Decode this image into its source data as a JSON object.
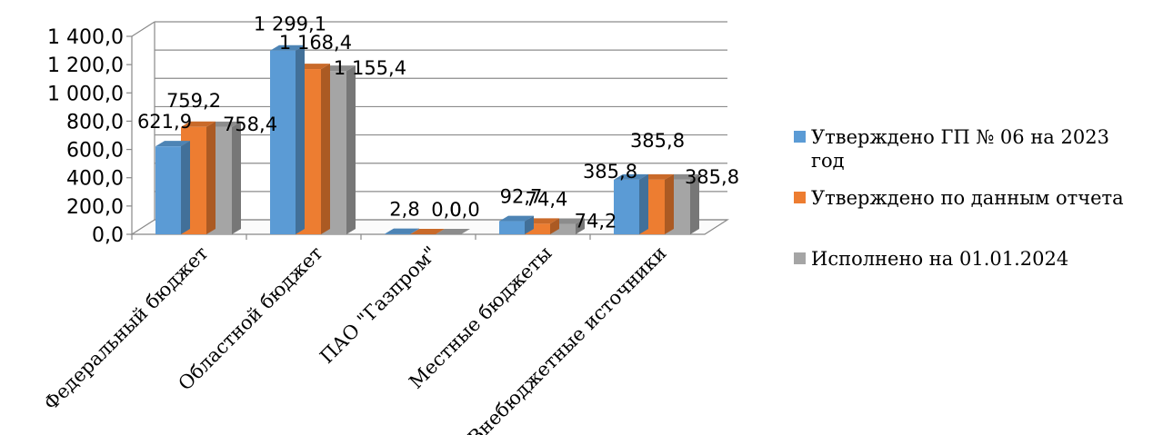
{
  "chart_data": {
    "type": "bar",
    "title": "",
    "xlabel": "",
    "ylabel": "",
    "ylim": [
      0,
      1400
    ],
    "yticks": [
      "0,0",
      "200,0",
      "400,0",
      "600,0",
      "800,0",
      "1 000,0",
      "1 200,0",
      "1 400,0"
    ],
    "categories": [
      "Федеральный бюджет",
      "Областной бюджет",
      "ПАО \"Газпром\"",
      "Местные бюджеты",
      "Внебюджетные источники"
    ],
    "series": [
      {
        "name": "Утверждено ГП № 06 на 2023 год",
        "color": "#5B9BD5",
        "values": [
          621.9,
          1299.1,
          2.8,
          92.7,
          385.8
        ],
        "labels": [
          "621,9",
          "1 299,1",
          "2,8",
          "92,7",
          "385,8"
        ]
      },
      {
        "name": "Утверждено по данным  отчета",
        "color": "#ED7D31",
        "values": [
          759.2,
          1168.4,
          0.0,
          74.4,
          385.8
        ],
        "labels": [
          "759,2",
          "1 168,4",
          "0,0",
          "74,4",
          "385,8"
        ]
      },
      {
        "name": "Исполнено на 01.01.2024",
        "color": "#A5A5A5",
        "values": [
          758.4,
          1155.4,
          0.0,
          74.2,
          385.8
        ],
        "labels": [
          "758,4",
          "1 155,4",
          "0,0",
          "74,2",
          "385,8"
        ]
      }
    ],
    "grid": true,
    "legend": "right",
    "legend_lines": [
      [
        "Утверждено ГП № 06 на 2023",
        "год"
      ],
      [
        "Утверждено по данным  отчета"
      ],
      [
        "Исполнено на 01.01.2024"
      ]
    ]
  }
}
